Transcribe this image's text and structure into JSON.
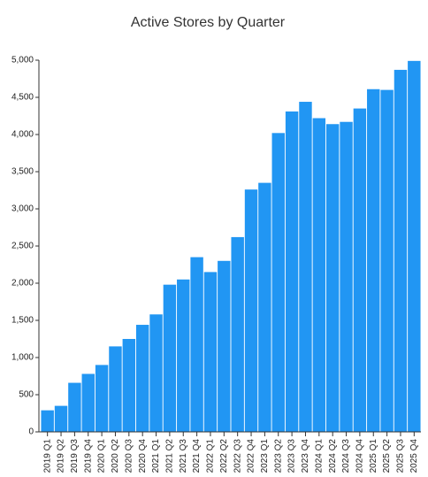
{
  "chart_data": {
    "type": "bar",
    "title": "Active Stores by Quarter",
    "categories": [
      "2019 Q1",
      "2019 Q2",
      "2019 Q3",
      "2019 Q4",
      "2020 Q1",
      "2020 Q2",
      "2020 Q3",
      "2020 Q4",
      "2021 Q1",
      "2021 Q2",
      "2021 Q3",
      "2021 Q4",
      "2022 Q1",
      "2022 Q2",
      "2022 Q3",
      "2022 Q4",
      "2023 Q1",
      "2023 Q2",
      "2023 Q3",
      "2023 Q4",
      "2024 Q1",
      "2024 Q2",
      "2024 Q3",
      "2024 Q4",
      "2025 Q1",
      "2025 Q2",
      "2025 Q3",
      "2025 Q4"
    ],
    "values": [
      290,
      350,
      660,
      780,
      900,
      1150,
      1250,
      1440,
      1580,
      1980,
      2050,
      2350,
      2150,
      2300,
      2620,
      3260,
      3350,
      4020,
      4310,
      4440,
      4220,
      4140,
      4170,
      4350,
      4610,
      4600,
      4870,
      4990
    ],
    "color": "#2196f3",
    "ylim": [
      0,
      5000
    ],
    "yticks": [
      0,
      500,
      {
        "value": 1000,
        "label": "1,000"
      },
      {
        "value": 1500,
        "label": "1,500"
      },
      {
        "value": 2000,
        "label": "2,000"
      },
      {
        "value": 2500,
        "label": "2,500"
      },
      {
        "value": 3000,
        "label": "3,000"
      },
      {
        "value": 3500,
        "label": "3,500"
      },
      {
        "value": 4000,
        "label": "4,000"
      },
      {
        "value": 4500,
        "label": "4,500"
      },
      {
        "value": 5000,
        "label": "5,000"
      }
    ],
    "grid": false
  }
}
